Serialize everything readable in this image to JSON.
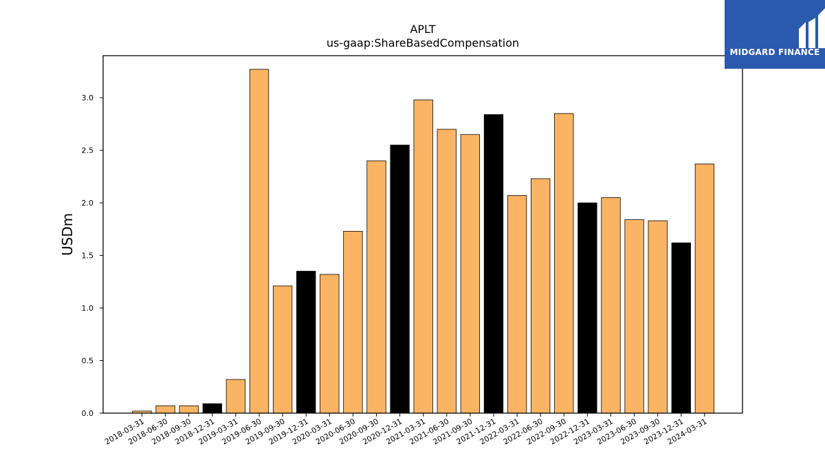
{
  "chart_data": {
    "type": "bar",
    "title": "APLT",
    "subtitle": "us-gaap:ShareBasedCompensation",
    "xlabel": "",
    "ylabel": "USDm",
    "ylim": [
      0,
      3.4
    ],
    "yticks": [
      "0.0",
      "0.5",
      "1.0",
      "1.5",
      "2.0",
      "2.5",
      "3.0"
    ],
    "grid": false,
    "categories": [
      "2018-03-31",
      "2018-06-30",
      "2018-09-30",
      "2018-12-31",
      "2019-03-31",
      "2019-06-30",
      "2019-09-30",
      "2019-12-31",
      "2020-03-31",
      "2020-06-30",
      "2020-09-30",
      "2020-12-31",
      "2021-03-31",
      "2021-06-30",
      "2021-09-30",
      "2021-12-31",
      "2022-03-31",
      "2022-06-30",
      "2022-09-30",
      "2022-12-31",
      "2023-03-31",
      "2023-06-30",
      "2023-09-30",
      "2023-12-31",
      "2024-03-31"
    ],
    "values": [
      0.02,
      0.07,
      0.07,
      0.09,
      0.32,
      3.27,
      1.21,
      1.35,
      1.32,
      1.73,
      2.4,
      2.55,
      2.98,
      2.7,
      2.65,
      2.84,
      2.07,
      2.23,
      2.85,
      2.0,
      2.05,
      1.84,
      1.83,
      1.62,
      2.37
    ],
    "colors": {
      "quarter_bar": "#fbb463",
      "year_end_bar": "#000000",
      "edge": "#000000"
    }
  },
  "logo": {
    "text": "MIDGARD FINANCE",
    "background": "#2a5aab"
  }
}
